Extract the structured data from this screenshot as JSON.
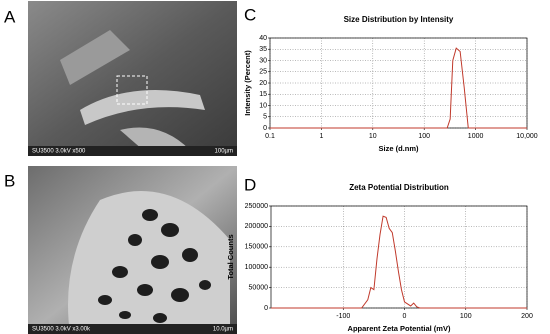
{
  "panels": [
    "A",
    "B",
    "C",
    "D"
  ],
  "images": [
    {
      "caption": "SU3500 3.0kV x500",
      "scale": "100µm"
    },
    {
      "caption": "SU3500 3.0kV x3.00k",
      "scale": "10.0µm"
    }
  ],
  "chart_data": [
    {
      "type": "line",
      "title": "Size Distribution by Intensity",
      "x_label": "Size (d.nm)",
      "y_label": "Intensity (Percent)",
      "x_log": true,
      "grid": true,
      "color": "#c0392b",
      "x": [
        0.1,
        100,
        280,
        320,
        360,
        420,
        500,
        600,
        720,
        10000
      ],
      "values": [
        0,
        0,
        0,
        4,
        30,
        35.5,
        34,
        18,
        0,
        0
      ],
      "xlim": [
        0.1,
        10000
      ],
      "xticks": [
        0.1,
        1,
        10,
        100,
        1000,
        {
          "value": 10000,
          "label": "10,000"
        }
      ],
      "ylim": [
        0,
        40
      ],
      "yticks": [
        0,
        5,
        10,
        15,
        20,
        25,
        30,
        35,
        40
      ]
    },
    {
      "type": "line",
      "title": "Zeta Potential Distribution",
      "x_label": "Apparent Zeta Potential (mV)",
      "y_label": "Total Counts",
      "x_log": false,
      "grid": true,
      "color": "#c0392b",
      "x": [
        -218,
        -70,
        -60,
        -55,
        -50,
        -45,
        -40,
        -35,
        -30,
        -25,
        -20,
        -15,
        -10,
        -5,
        0,
        5,
        10,
        15,
        20,
        25,
        30,
        200
      ],
      "values": [
        0,
        0,
        20000,
        50000,
        45000,
        120000,
        180000,
        225000,
        222000,
        195000,
        185000,
        140000,
        90000,
        45000,
        15000,
        10000,
        5000,
        12000,
        3000,
        0,
        0,
        0
      ],
      "xlim": [
        -218,
        200
      ],
      "xticks": [
        -100,
        0,
        100,
        200
      ],
      "ylim": [
        0,
        250000
      ],
      "yticks": [
        0,
        50000,
        100000,
        150000,
        200000,
        250000
      ]
    }
  ]
}
